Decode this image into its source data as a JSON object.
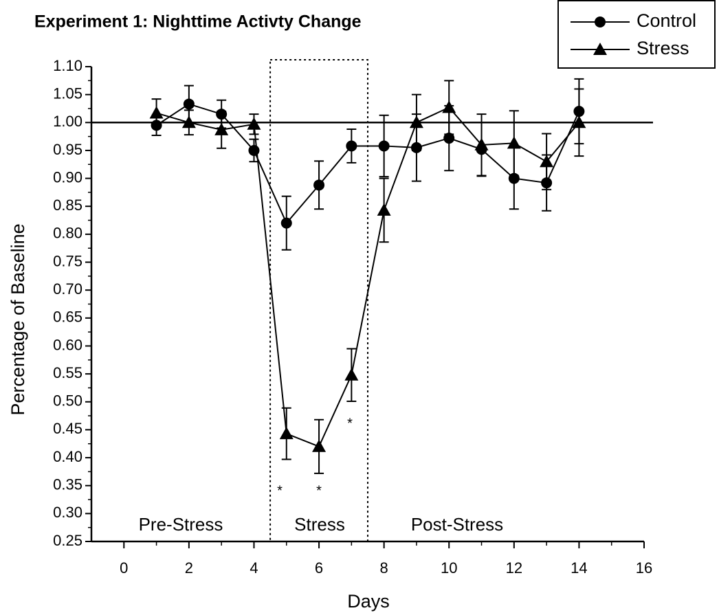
{
  "chart_data": {
    "type": "line",
    "title": "Experiment 1: Nighttime Activty Change",
    "x_label": "Days",
    "y_label": "Percentage of Baseline",
    "x": [
      1,
      2,
      3,
      4,
      5,
      6,
      7,
      8,
      9,
      10,
      11,
      12,
      13,
      14
    ],
    "series": [
      {
        "name": "Control",
        "marker": "circle",
        "color": "#000000",
        "values": [
          0.995,
          1.033,
          1.015,
          0.95,
          0.82,
          0.888,
          0.958,
          0.958,
          0.955,
          0.972,
          0.952,
          0.9,
          0.892,
          1.02
        ],
        "errors": [
          0.018,
          0.033,
          0.025,
          0.02,
          0.048,
          0.043,
          0.03,
          0.055,
          0.06,
          0.058,
          0.048,
          0.055,
          0.05,
          0.058
        ]
      },
      {
        "name": "Stress",
        "marker": "triangle",
        "color": "#000000",
        "values": [
          1.017,
          1.0,
          0.987,
          0.997,
          0.443,
          0.42,
          0.548,
          0.843,
          1.0,
          1.027,
          0.96,
          0.963,
          0.93,
          1.0
        ],
        "errors": [
          0.025,
          0.022,
          0.033,
          0.018,
          0.046,
          0.048,
          0.047,
          0.057,
          0.05,
          0.048,
          0.055,
          0.058,
          0.05,
          0.06
        ]
      }
    ],
    "xlim": [
      -1,
      16
    ],
    "xticks": [
      0,
      2,
      4,
      6,
      8,
      10,
      12,
      14,
      16
    ],
    "ylim": [
      0.25,
      1.1
    ],
    "yticks": [
      0.25,
      {
        "value": 0.3,
        "label": "0.30"
      },
      0.35,
      {
        "value": 0.4,
        "label": "0.40"
      },
      0.45,
      {
        "value": 0.5,
        "label": "0.50"
      },
      0.55,
      {
        "value": 0.6,
        "label": "0.60"
      },
      0.65,
      {
        "value": 0.7,
        "label": "0.70"
      },
      0.75,
      {
        "value": 0.8,
        "label": "0.80"
      },
      0.85,
      {
        "value": 0.9,
        "label": "0.90"
      },
      0.95,
      {
        "value": 1.0,
        "label": "1.00"
      },
      1.05,
      {
        "value": 1.1,
        "label": "1.10"
      }
    ],
    "reference_line": 1,
    "highlight_x": [
      4.5,
      7.5
    ],
    "annotations": [
      "Pre-Stress",
      "Stress",
      "Post-Stress",
      "*",
      "*",
      "*"
    ],
    "legend": "top-right",
    "grid": false
  }
}
